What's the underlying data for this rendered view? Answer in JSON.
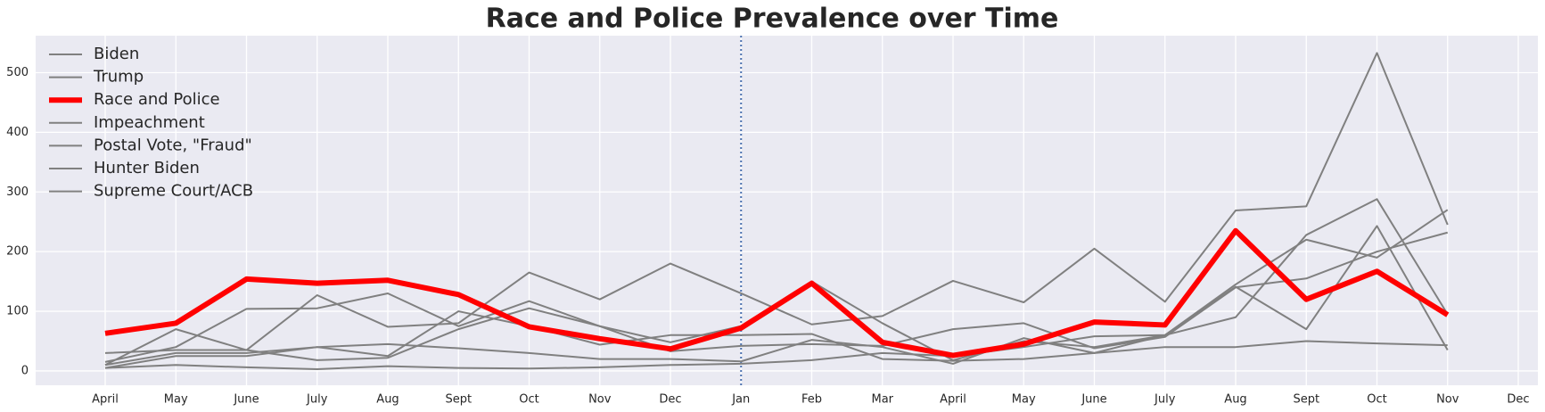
{
  "chart_data": {
    "type": "line",
    "title": "Race and Police Prevalence over Time",
    "categories": [
      "April",
      "May",
      "June",
      "July",
      "Aug",
      "Sept",
      "Oct",
      "Nov",
      "Dec",
      "Jan",
      "Feb",
      "Mar",
      "April",
      "May",
      "June",
      "July",
      "Aug",
      "Sept",
      "Oct",
      "Nov",
      "Dec"
    ],
    "series": [
      {
        "name": "Biden",
        "color": "#808080",
        "values": [
          30,
          35,
          35,
          18,
          22,
          70,
          105,
          75,
          48,
          75,
          150,
          80,
          18,
          50,
          40,
          60,
          145,
          220,
          190,
          270,
          null
        ]
      },
      {
        "name": "Trump",
        "color": "#808080",
        "values": [
          10,
          70,
          35,
          127,
          74,
          80,
          165,
          120,
          180,
          130,
          78,
          92,
          151,
          115,
          205,
          116,
          269,
          276,
          533,
          245,
          null
        ]
      },
      {
        "name": "Race and Police",
        "color": "#ff0000",
        "values": [
          63,
          80,
          154,
          147,
          152,
          128,
          74,
          54,
          37,
          72,
          147,
          48,
          26,
          45,
          82,
          77,
          235,
          120,
          167,
          94,
          null
        ]
      },
      {
        "name": "Impeachment",
        "color": "#808080",
        "values": [
          5,
          25,
          25,
          40,
          45,
          38,
          30,
          20,
          20,
          16,
          52,
          40,
          12,
          55,
          30,
          60,
          90,
          228,
          288,
          95,
          null
        ]
      },
      {
        "name": "Postal Vote, \"Fraud\"",
        "color": "#808080",
        "values": [
          15,
          40,
          104,
          105,
          130,
          75,
          117,
          75,
          33,
          42,
          45,
          42,
          70,
          80,
          38,
          57,
          140,
          155,
          200,
          232,
          null
        ]
      },
      {
        "name": "Hunter Biden",
        "color": "#808080",
        "values": [
          10,
          30,
          30,
          40,
          25,
          100,
          75,
          44,
          60,
          60,
          62,
          20,
          17,
          20,
          30,
          40,
          40,
          50,
          46,
          43,
          null
        ]
      },
      {
        "name": "Supreme Court/ACB",
        "color": "#808080",
        "values": [
          5,
          10,
          6,
          3,
          8,
          5,
          4,
          6,
          10,
          12,
          18,
          30,
          25,
          40,
          58,
          60,
          141,
          70,
          243,
          35,
          null
        ]
      }
    ],
    "ylim": [
      -24,
      562
    ],
    "yticks": [
      0,
      100,
      200,
      300,
      400,
      500
    ],
    "grid": true,
    "legend": "upper left",
    "vline": {
      "x": "Jan",
      "color": "#4c72b0",
      "style": "dotted"
    }
  }
}
